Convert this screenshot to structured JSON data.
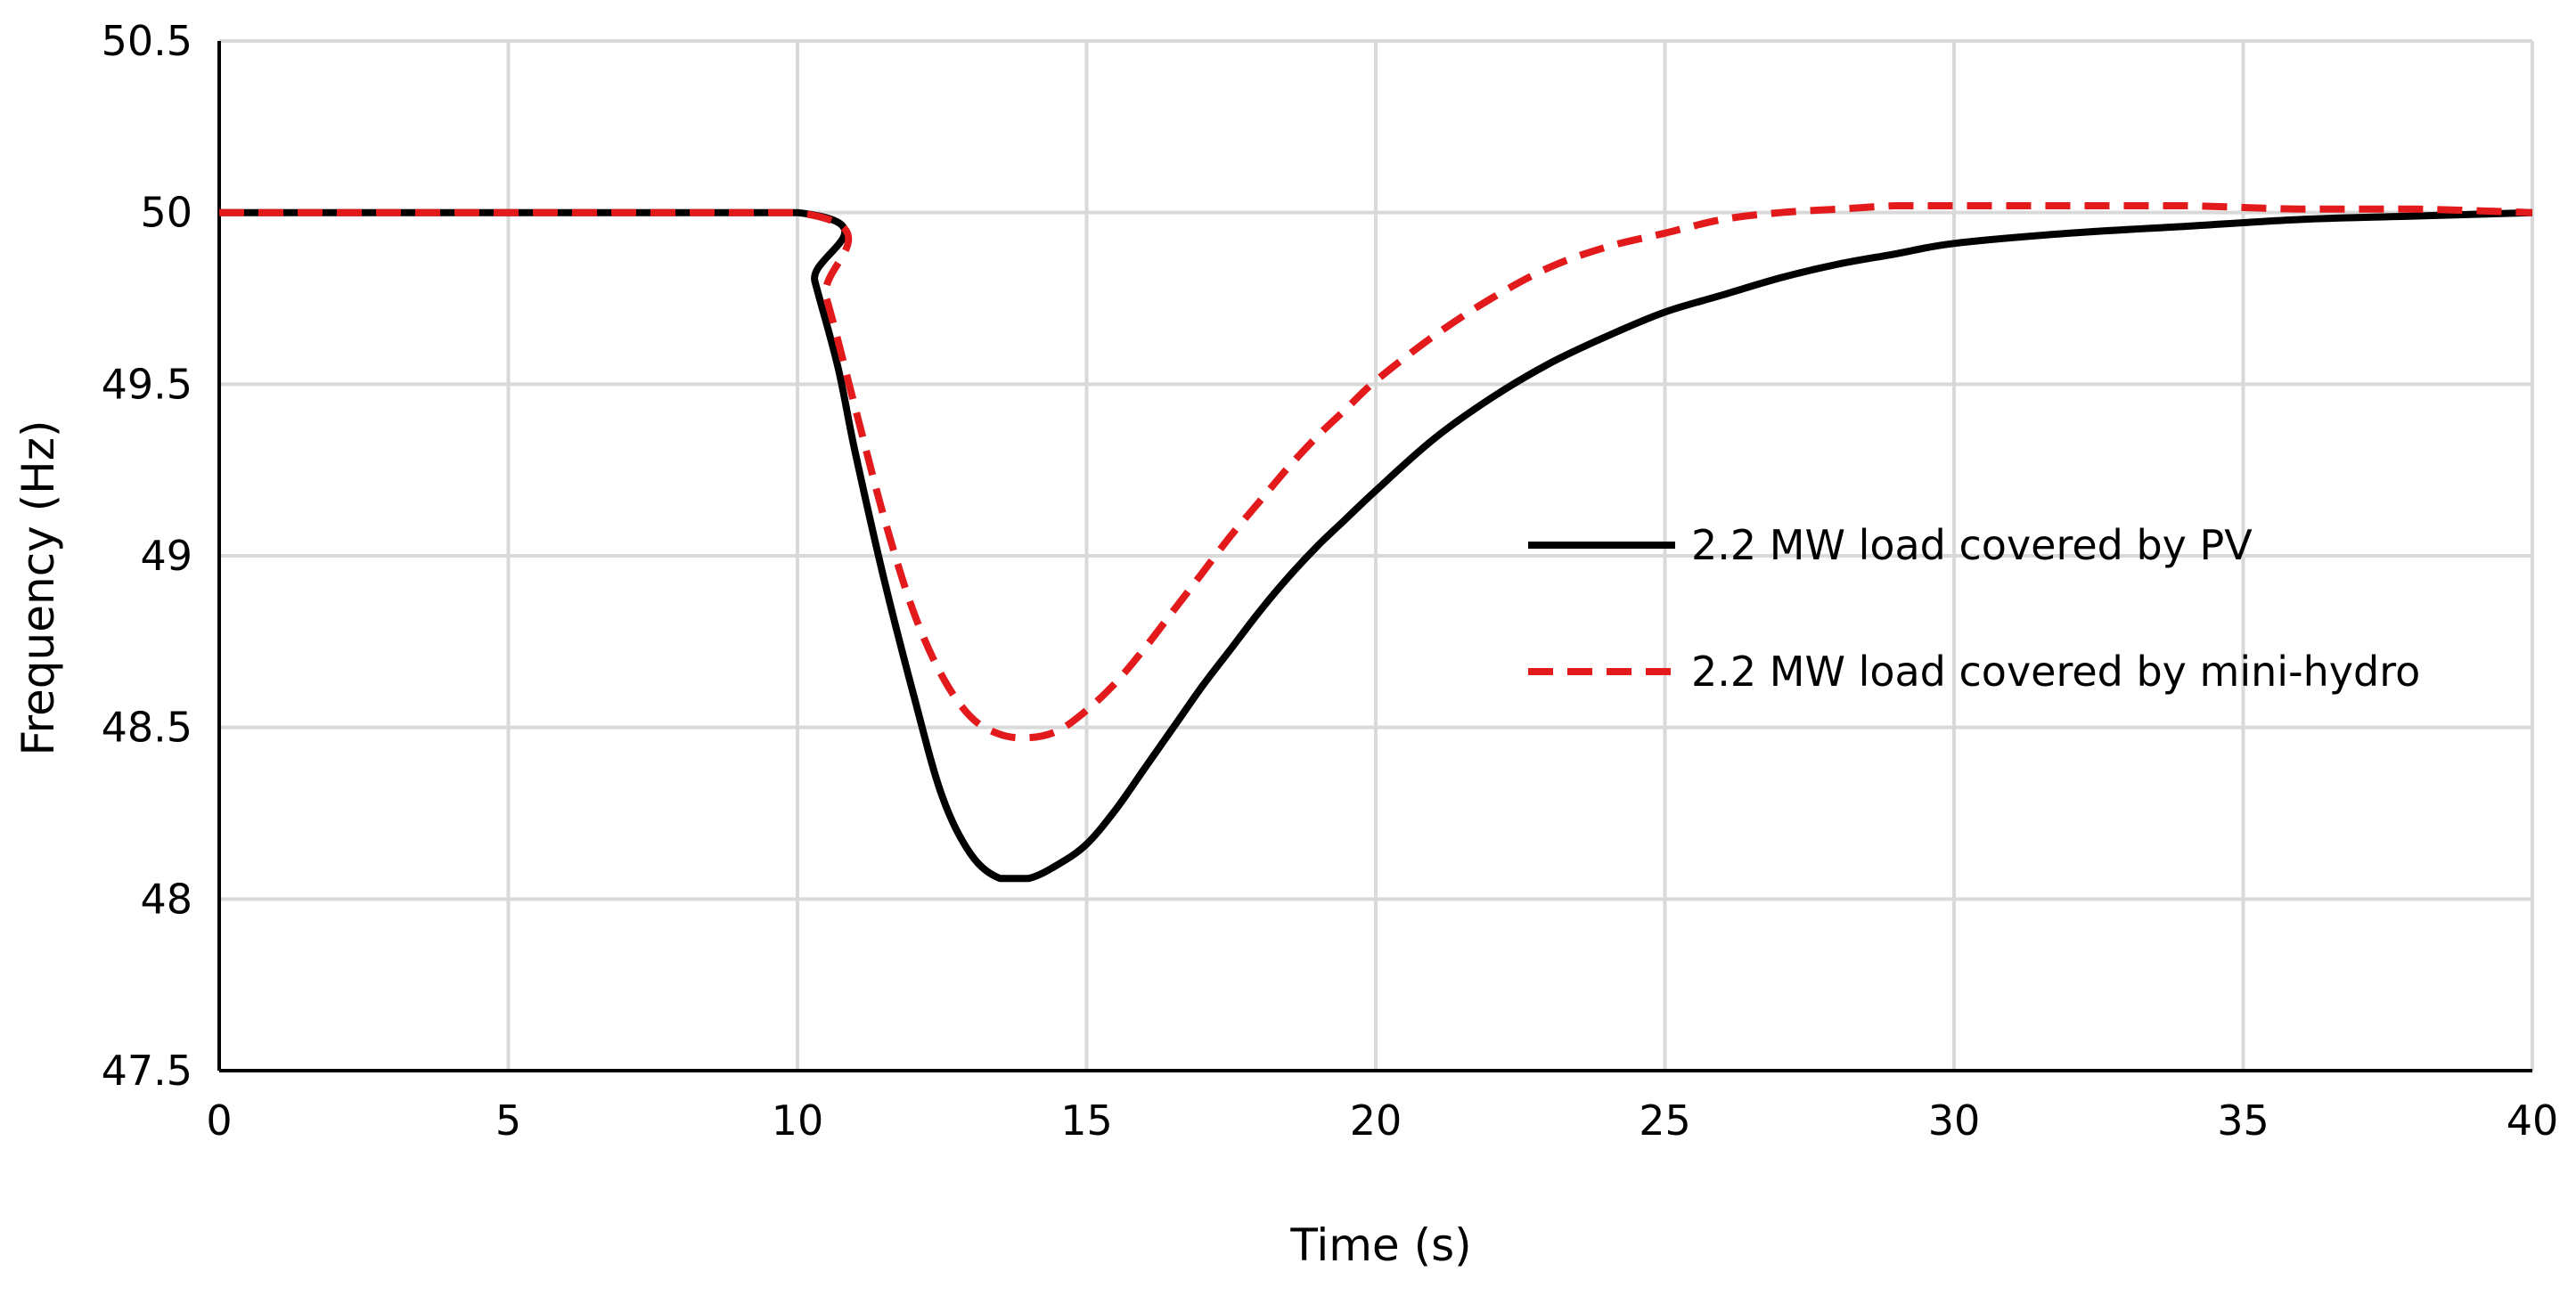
{
  "chart_data": {
    "type": "line",
    "title": "",
    "xlabel": "Time (s)",
    "ylabel": "Frequency (Hz)",
    "xlim": [
      0,
      40
    ],
    "ylim": [
      47.5,
      50.5
    ],
    "xticks": [
      0,
      5,
      10,
      15,
      20,
      25,
      30,
      35,
      40
    ],
    "yticks": [
      47.5,
      48,
      48.5,
      49,
      49.5,
      50,
      50.5
    ],
    "xtick_labels": [
      "0",
      "5",
      "10",
      "15",
      "20",
      "25",
      "30",
      "35",
      "40"
    ],
    "ytick_labels": [
      "47.5",
      "48",
      "48.5",
      "49",
      "49.5",
      "50",
      "50.5"
    ],
    "grid": true,
    "legend_position": "right-middle",
    "series": [
      {
        "name": "2.2 MW load covered by PV",
        "color": "#000000",
        "style": "solid",
        "x": [
          0,
          10,
          10.3,
          10.7,
          11.0,
          11.5,
          12.0,
          12.5,
          13.0,
          13.5,
          14.0,
          14.5,
          15.0,
          15.5,
          16.0,
          16.5,
          17.0,
          17.5,
          18.0,
          18.5,
          19.0,
          19.5,
          20.0,
          21.0,
          22.0,
          23.0,
          24.0,
          25.0,
          26.0,
          27.0,
          28.0,
          29.0,
          30.0,
          32.0,
          34.0,
          36.0,
          38.0,
          40.0
        ],
        "values": [
          50.0,
          50.0,
          49.8,
          49.55,
          49.3,
          48.93,
          48.6,
          48.3,
          48.13,
          48.06,
          48.06,
          48.1,
          48.16,
          48.26,
          48.38,
          48.5,
          48.62,
          48.73,
          48.84,
          48.94,
          49.03,
          49.11,
          49.19,
          49.34,
          49.46,
          49.56,
          49.64,
          49.71,
          49.76,
          49.81,
          49.85,
          49.88,
          49.91,
          49.94,
          49.96,
          49.98,
          49.99,
          50.0
        ]
      },
      {
        "name": "2.2 MW load covered by mini-hydro",
        "color": "#e31a1c",
        "style": "dashed",
        "x": [
          0,
          10,
          10.5,
          11.0,
          11.5,
          12.0,
          12.5,
          13.0,
          13.5,
          14.0,
          14.5,
          15.0,
          15.5,
          16.0,
          16.5,
          17.0,
          17.5,
          18.0,
          18.5,
          19.0,
          19.5,
          20.0,
          21.0,
          22.0,
          23.0,
          24.0,
          25.0,
          26.0,
          27.0,
          28.0,
          29.0,
          30.0,
          32.0,
          34.0,
          36.0,
          38.0,
          40.0
        ],
        "values": [
          50.0,
          50.0,
          49.75,
          49.43,
          49.11,
          48.84,
          48.65,
          48.53,
          48.48,
          48.47,
          48.49,
          48.55,
          48.63,
          48.73,
          48.84,
          48.95,
          49.06,
          49.16,
          49.26,
          49.35,
          49.43,
          49.51,
          49.64,
          49.75,
          49.84,
          49.9,
          49.94,
          49.98,
          50.0,
          50.01,
          50.02,
          50.02,
          50.02,
          50.02,
          50.01,
          50.01,
          50.0
        ]
      }
    ]
  }
}
